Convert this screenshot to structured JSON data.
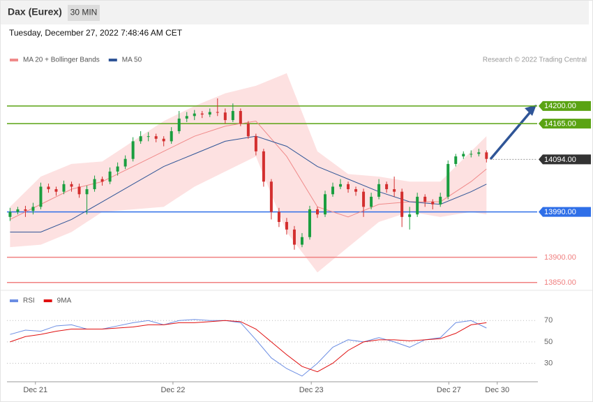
{
  "header": {
    "title": "Dax (Eurex)",
    "interval": "30 MIN",
    "timestamp": "Tuesday, December 27, 2022 7:48:46 AM CET",
    "credit": "Research © 2022 Trading Central"
  },
  "chart_data": [
    {
      "type": "candlestick",
      "up_color": "#1a9e3f",
      "down_color": "#d32f2f",
      "xlim": [
        -0.4,
        68.6
      ],
      "ylim": [
        13840,
        14280
      ],
      "ohlc": [
        [
          13980,
          13998,
          13972,
          13990
        ],
        [
          13990,
          14000,
          13985,
          13995
        ],
        [
          13995,
          14002,
          13980,
          13992
        ],
        [
          13992,
          14008,
          13985,
          14000
        ],
        [
          14000,
          14048,
          13995,
          14040
        ],
        [
          14040,
          14046,
          14028,
          14035
        ],
        [
          14035,
          14040,
          14022,
          14030
        ],
        [
          14030,
          14052,
          14025,
          14045
        ],
        [
          14045,
          14050,
          14030,
          14040
        ],
        [
          14040,
          14046,
          14018,
          14025
        ],
        [
          14025,
          14042,
          13985,
          14035
        ],
        [
          14035,
          14062,
          14030,
          14055
        ],
        [
          14055,
          14060,
          14042,
          14050
        ],
        [
          14050,
          14078,
          14045,
          14070
        ],
        [
          14070,
          14088,
          14062,
          14080
        ],
        [
          14080,
          14102,
          14075,
          14095
        ],
        [
          14095,
          14138,
          14090,
          14130
        ],
        [
          14130,
          14150,
          14125,
          14140
        ],
        [
          14140,
          14148,
          14130,
          14140
        ],
        [
          14140,
          14145,
          14128,
          14135
        ],
        [
          14135,
          14140,
          14120,
          14130
        ],
        [
          14130,
          14158,
          14125,
          14150
        ],
        [
          14150,
          14190,
          14145,
          14175
        ],
        [
          14175,
          14188,
          14168,
          14180
        ],
        [
          14180,
          14192,
          14172,
          14185
        ],
        [
          14185,
          14190,
          14176,
          14183
        ],
        [
          14183,
          14195,
          14178,
          14188
        ],
        [
          14188,
          14215,
          14180,
          14187
        ],
        [
          14187,
          14195,
          14165,
          14172
        ],
        [
          14172,
          14205,
          14168,
          14190
        ],
        [
          14190,
          14195,
          14160,
          14165
        ],
        [
          14165,
          14170,
          14135,
          14140
        ],
        [
          14140,
          14145,
          14102,
          14110
        ],
        [
          14110,
          14115,
          14040,
          14050
        ],
        [
          14050,
          14055,
          13975,
          13990
        ],
        [
          13990,
          13998,
          13960,
          13970
        ],
        [
          13970,
          13978,
          13945,
          13955
        ],
        [
          13955,
          13962,
          13915,
          13925
        ],
        [
          13925,
          13948,
          13920,
          13940
        ],
        [
          13940,
          14002,
          13935,
          13995
        ],
        [
          13995,
          14000,
          13978,
          13985
        ],
        [
          13985,
          14032,
          13980,
          14025
        ],
        [
          14025,
          14048,
          14020,
          14040
        ],
        [
          14040,
          14055,
          14035,
          14045
        ],
        [
          14045,
          14050,
          14028,
          14035
        ],
        [
          14035,
          14040,
          14022,
          14030
        ],
        [
          14030,
          14036,
          13980,
          14000
        ],
        [
          14000,
          14028,
          13995,
          14020
        ],
        [
          14020,
          14055,
          14015,
          14045
        ],
        [
          14045,
          14050,
          14028,
          14035
        ],
        [
          14035,
          14060,
          14020,
          14030
        ],
        [
          14030,
          14036,
          13960,
          13980
        ],
        [
          13980,
          14000,
          13955,
          13985
        ],
        [
          13985,
          14028,
          13980,
          14020
        ],
        [
          14020,
          14025,
          14000,
          14010
        ],
        [
          14010,
          14015,
          13995,
          14005
        ],
        [
          14005,
          14028,
          14000,
          14020
        ],
        [
          14020,
          14092,
          14015,
          14085
        ],
        [
          14085,
          14105,
          14080,
          14100
        ],
        [
          14100,
          14110,
          14095,
          14105
        ],
        [
          14105,
          14112,
          14098,
          14105
        ],
        [
          14105,
          14115,
          14100,
          14108
        ],
        [
          14108,
          14112,
          14088,
          14095
        ]
      ],
      "series": [
        {
          "name": "MA 20 + Bollinger Bands",
          "color": "#f08a8a",
          "band_color": "#fde1e1",
          "x": [
            0,
            4,
            8,
            12,
            16,
            20,
            24,
            28,
            32,
            36,
            40,
            44,
            48,
            52,
            56,
            60,
            62
          ],
          "values": [
            13975,
            14005,
            14035,
            14050,
            14080,
            14110,
            14140,
            14160,
            14170,
            14100,
            14000,
            13980,
            14005,
            14010,
            14010,
            14050,
            14075
          ],
          "upper": [
            14000,
            14060,
            14085,
            14090,
            14130,
            14170,
            14200,
            14225,
            14240,
            14265,
            14110,
            14065,
            14060,
            14050,
            14050,
            14110,
            14140
          ],
          "lower": [
            13920,
            13925,
            13950,
            13990,
            13995,
            14000,
            14040,
            14070,
            14100,
            13950,
            13870,
            13920,
            13970,
            13990,
            13980,
            13990,
            13985
          ]
        },
        {
          "name": "MA 50",
          "color": "#2f5597",
          "x": [
            0,
            4,
            8,
            12,
            16,
            20,
            24,
            28,
            32,
            36,
            40,
            44,
            48,
            52,
            56,
            60,
            62
          ],
          "values": [
            13950,
            13950,
            13975,
            14010,
            14045,
            14080,
            14105,
            14130,
            14140,
            14120,
            14080,
            14055,
            14030,
            14010,
            14005,
            14030,
            14045
          ]
        }
      ],
      "levels": [
        {
          "value": 14200,
          "label": "14200.00",
          "color": "#5aa313",
          "style": "fill"
        },
        {
          "value": 14165,
          "label": "14165.00",
          "color": "#5aa313",
          "style": "fill"
        },
        {
          "value": 14094,
          "label": "14094.00",
          "color": "#333333",
          "style": "fill",
          "dotted": true
        },
        {
          "value": 13990,
          "label": "13990.00",
          "color": "#2f6fe8",
          "style": "fill"
        },
        {
          "value": 13900,
          "label": "13900.00",
          "color": "#f08080",
          "style": "text"
        },
        {
          "value": 13850,
          "label": "13850.00",
          "color": "#f08080",
          "style": "text"
        }
      ]
    },
    {
      "type": "line",
      "xlim": [
        -0.4,
        68.6
      ],
      "ylim": [
        12,
        80
      ],
      "yticks": [
        30,
        50,
        70
      ],
      "xticks": [
        {
          "value": 3.3,
          "label": "Dec 21"
        },
        {
          "value": 21.2,
          "label": "Dec 22"
        },
        {
          "value": 39.2,
          "label": "Dec 23"
        },
        {
          "value": 57.1,
          "label": "Dec 27"
        },
        {
          "value": 63.4,
          "label": "Dec 30"
        }
      ],
      "x": [
        0,
        2,
        4,
        6,
        8,
        10,
        12,
        14,
        16,
        18,
        20,
        22,
        24,
        26,
        28,
        30,
        32,
        34,
        36,
        38,
        40,
        42,
        44,
        46,
        48,
        50,
        52,
        54,
        56,
        58,
        60,
        62
      ],
      "series": [
        {
          "name": "RSI",
          "color": "#6b8de3",
          "values": [
            57,
            61,
            60,
            65,
            66,
            62,
            62,
            65,
            68,
            70,
            66,
            70,
            71,
            70,
            70,
            68,
            52,
            35,
            25,
            18,
            30,
            45,
            52,
            50,
            54,
            50,
            45,
            52,
            54,
            68,
            70,
            63
          ]
        },
        {
          "name": "9MA",
          "color": "#e01010",
          "values": [
            50,
            55,
            57,
            60,
            62,
            62,
            62,
            63,
            64,
            66,
            66,
            68,
            68,
            69,
            70,
            69,
            62,
            50,
            38,
            27,
            22,
            30,
            42,
            50,
            52,
            52,
            51,
            52,
            53,
            58,
            66,
            68
          ]
        }
      ]
    }
  ]
}
